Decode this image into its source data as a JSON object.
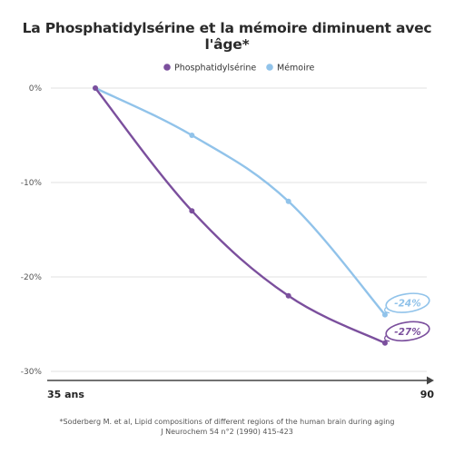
{
  "title": "La Phosphatidylsérine et la mémoire diminuent avec l'âge*",
  "footnote": {
    "line1": "*Soderberg M. et al, Lipid compositions of different regions of the human brain during aging",
    "line2": "J Neurochem 54 n°2 (1990) 415-423"
  },
  "colors": {
    "phosphatidylserine": "#7b4f9d",
    "memoire": "#91c3ea",
    "grid": "#e0e0e0",
    "axis": "#444444"
  },
  "chart_data": {
    "type": "line",
    "x_start_label": "35 ans",
    "x_end_label": "90",
    "x": [
      1,
      2,
      3,
      4
    ],
    "ylim": [
      -30,
      0
    ],
    "y_ticks": [
      {
        "value": 0,
        "label": "0%"
      },
      {
        "value": -10,
        "label": "-10%"
      },
      {
        "value": -20,
        "label": "-20%"
      },
      {
        "value": -30,
        "label": "-30%"
      }
    ],
    "grid": "horizontal",
    "legend_position": "top-center",
    "series": [
      {
        "key": "phosphatidylserine",
        "name": "Phosphatidylsérine",
        "values": [
          0,
          -13,
          -22,
          -27
        ],
        "callout": "-27%"
      },
      {
        "key": "memoire",
        "name": "Mémoire",
        "values": [
          0,
          -5,
          -12,
          -24
        ],
        "callout": "-24%"
      }
    ]
  }
}
